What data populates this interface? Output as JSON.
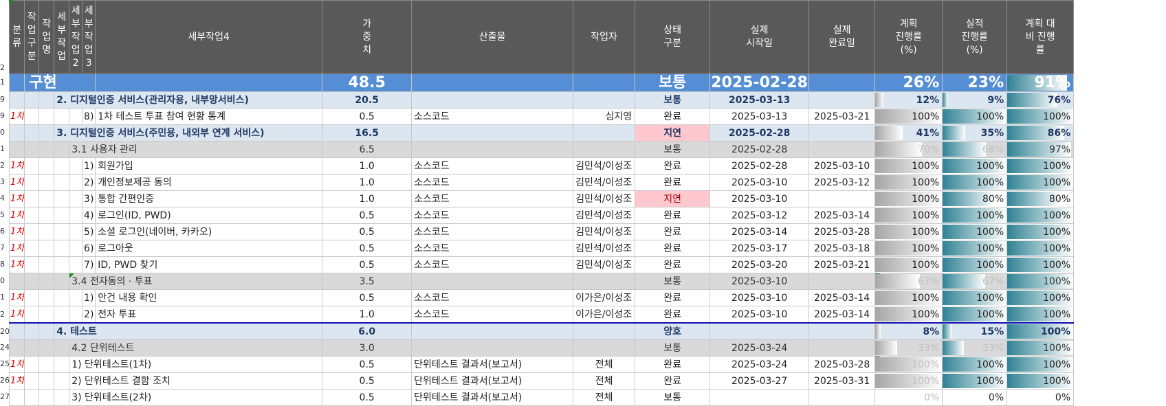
{
  "headers": {
    "cat": "분류",
    "work_type": "작업구분",
    "work_name": "작업명",
    "sub1": "세부작업",
    "sub2": "세부작업2",
    "sub3": "세부작업3",
    "sub4": "세부작업4",
    "weight": "가중치",
    "output": "산출물",
    "worker": "작업자",
    "status": "상태 구분",
    "start": "실제 시작일",
    "end": "실제 완료일",
    "plan": "계획 진행률 (%)",
    "actual": "실적 진행률 (%)",
    "ratio": "계획 대비 진행률"
  },
  "row_numbers": [
    "2",
    "1",
    "9",
    "9",
    "0",
    "1",
    "2",
    "3",
    "4",
    "5",
    "6",
    "7",
    "8",
    "0",
    "1",
    "2",
    "20",
    "24",
    "25",
    "26",
    "27"
  ],
  "total": {
    "label": "구현",
    "weight": "48.5",
    "status": "보통",
    "start": "2025-02-28",
    "plan": "26%",
    "actual": "23%",
    "ratio": "91%"
  },
  "rows": [
    {
      "type": "sec",
      "cat": "",
      "indent": "sec",
      "label": "2. 디지털인증 서비스(관리자용, 내부망서비스)",
      "weight": "20.5",
      "output": "",
      "worker": "",
      "status": "보통",
      "start": "2025-03-13",
      "end": "",
      "plan": "12%",
      "plan_v": 0.12,
      "actual": "9%",
      "actual_v": 0.09,
      "ratio": "76%",
      "ratio_v": 0.76
    },
    {
      "type": "item",
      "cat": "1차",
      "indent": "item",
      "num": "8)",
      "label": "1차 테스트 투표 참여 현황 통계",
      "weight": "0.5",
      "output": "소스코드",
      "worker": "심지영",
      "status": "완료",
      "start": "2025-03-13",
      "end": "2025-03-21",
      "plan": "100%",
      "plan_v": 1,
      "actual": "100%",
      "actual_v": 1,
      "ratio": "100%",
      "ratio_v": 1
    },
    {
      "type": "sec",
      "cat": "",
      "indent": "sec",
      "label": "3. 디지털인증 서비스(주민용, 내외부 연계 서비스)",
      "weight": "16.5",
      "output": "",
      "worker": "",
      "status": "지연",
      "start": "2025-02-28",
      "end": "",
      "plan": "41%",
      "plan_v": 0.41,
      "actual": "35%",
      "actual_v": 0.35,
      "ratio": "86%",
      "ratio_v": 0.86
    },
    {
      "type": "sub",
      "cat": "",
      "indent": "sub",
      "label": "3.1 사용자 관리",
      "weight": "6.5",
      "output": "",
      "worker": "",
      "status": "보통",
      "start": "2025-02-28",
      "end": "",
      "plan": "70%",
      "plan_v": 0.7,
      "actual": "68%",
      "actual_v": 0.68,
      "ratio": "97%",
      "ratio_v": 0.97
    },
    {
      "type": "item",
      "cat": "1차",
      "indent": "item",
      "num": "1)",
      "label": "회원가입",
      "weight": "1.0",
      "output": "소스코드",
      "worker": "김민석/이성조",
      "status": "완료",
      "start": "2025-02-28",
      "end": "2025-03-10",
      "plan": "100%",
      "plan_v": 1,
      "actual": "100%",
      "actual_v": 1,
      "ratio": "100%",
      "ratio_v": 1
    },
    {
      "type": "item",
      "cat": "1차",
      "indent": "item",
      "num": "2)",
      "label": "개인정보제공 동의",
      "weight": "1.0",
      "output": "소스코드",
      "worker": "김민석/이성조",
      "status": "완료",
      "start": "2025-03-10",
      "end": "2025-03-12",
      "plan": "100%",
      "plan_v": 1,
      "actual": "100%",
      "actual_v": 1,
      "ratio": "100%",
      "ratio_v": 1
    },
    {
      "type": "item",
      "cat": "1차",
      "indent": "item",
      "num": "3)",
      "label": "통합 간편인증",
      "weight": "1.0",
      "output": "소스코드",
      "worker": "김민석/이성조",
      "status": "지연",
      "start": "2025-03-10",
      "end": "",
      "plan": "100%",
      "plan_v": 1,
      "actual": "80%",
      "actual_v": 0.8,
      "ratio": "80%",
      "ratio_v": 0.8
    },
    {
      "type": "item",
      "cat": "1차",
      "indent": "item",
      "num": "4)",
      "label": "로그인(ID, PWD)",
      "weight": "0.5",
      "output": "소스코드",
      "worker": "김민석/이성조",
      "status": "완료",
      "start": "2025-03-12",
      "end": "2025-03-14",
      "plan": "100%",
      "plan_v": 1,
      "actual": "100%",
      "actual_v": 1,
      "ratio": "100%",
      "ratio_v": 1
    },
    {
      "type": "item",
      "cat": "1차",
      "indent": "item",
      "num": "5)",
      "label": "소셜 로그인(네이버, 카카오)",
      "weight": "0.5",
      "output": "소스코드",
      "worker": "김민석/이성조",
      "status": "완료",
      "start": "2025-03-14",
      "end": "2025-03-28",
      "plan": "100%",
      "plan_v": 1,
      "actual": "100%",
      "actual_v": 1,
      "ratio": "100%",
      "ratio_v": 1
    },
    {
      "type": "item",
      "cat": "1차",
      "indent": "item",
      "num": "6)",
      "label": "로그아웃",
      "weight": "0.5",
      "output": "소스코드",
      "worker": "김민석/이성조",
      "status": "완료",
      "start": "2025-03-17",
      "end": "2025-03-18",
      "plan": "100%",
      "plan_v": 1,
      "actual": "100%",
      "actual_v": 1,
      "ratio": "100%",
      "ratio_v": 1
    },
    {
      "type": "item",
      "cat": "1차",
      "indent": "item",
      "num": "7)",
      "label": "ID, PWD 찾기",
      "weight": "0.5",
      "output": "소스코드",
      "worker": "김민석/이성조",
      "status": "완료",
      "start": "2025-03-20",
      "end": "2025-03-21",
      "plan": "100%",
      "plan_v": 1,
      "actual": "100%",
      "actual_v": 1,
      "ratio": "100%",
      "ratio_v": 1
    },
    {
      "type": "sub",
      "cat": "",
      "indent": "sub",
      "label": "3.4 전자동의 · 투표",
      "weight": "3.5",
      "output": "",
      "worker": "",
      "status": "보통",
      "start": "2025-03-10",
      "end": "",
      "plan": "67%",
      "plan_v": 0.67,
      "actual": "67%",
      "actual_v": 0.67,
      "ratio": "100%",
      "ratio_v": 1
    },
    {
      "type": "item",
      "cat": "1차",
      "indent": "item",
      "num": "1)",
      "label": "안건 내용 확인",
      "weight": "0.5",
      "output": "소스코드",
      "worker": "이가은/이성조",
      "status": "완료",
      "start": "2025-03-10",
      "end": "2025-03-14",
      "plan": "100%",
      "plan_v": 1,
      "actual": "100%",
      "actual_v": 1,
      "ratio": "100%",
      "ratio_v": 1
    },
    {
      "type": "item",
      "cat": "1차",
      "indent": "item",
      "num": "2)",
      "label": "전자 투표",
      "weight": "1.0",
      "output": "소스코드",
      "worker": "이가은/이성조",
      "status": "완료",
      "start": "2025-03-10",
      "end": "2025-03-14",
      "plan": "100%",
      "plan_v": 1,
      "actual": "100%",
      "actual_v": 1,
      "ratio": "100%",
      "ratio_v": 1
    },
    {
      "type": "sec",
      "cat": "",
      "indent": "sec",
      "label": "4. 테스트",
      "weight": "6.0",
      "output": "",
      "worker": "",
      "status": "양호",
      "start": "",
      "end": "",
      "plan": "8%",
      "plan_v": 0.08,
      "actual": "15%",
      "actual_v": 0.15,
      "ratio": "100%",
      "ratio_v": 1
    },
    {
      "type": "sub",
      "cat": "",
      "indent": "sub",
      "label": "4.2 단위테스트",
      "weight": "3.0",
      "output": "",
      "worker": "",
      "status": "보통",
      "start": "2025-03-24",
      "end": "",
      "plan": "33%",
      "plan_v": 0.33,
      "actual": "33%",
      "actual_v": 0.33,
      "ratio": "100%",
      "ratio_v": 1
    },
    {
      "type": "item",
      "cat": "1차",
      "indent": "item3",
      "num": "",
      "label": "1) 단위테스트(1차)",
      "weight": "0.5",
      "output": "단위테스트 결과서(보고서)",
      "worker": "전체",
      "status": "완료",
      "start": "2025-03-24",
      "end": "2025-03-28",
      "plan": "100%",
      "plan_v": 1,
      "actual": "100%",
      "actual_v": 1,
      "ratio": "100%",
      "ratio_v": 1
    },
    {
      "type": "item",
      "cat": "1차",
      "indent": "item3",
      "num": "",
      "label": "2) 단위테스트 결함 조치",
      "weight": "0.5",
      "output": "단위테스트 결과서(보고서)",
      "worker": "전체",
      "status": "완료",
      "start": "2025-03-27",
      "end": "2025-03-31",
      "plan": "100%",
      "plan_v": 1,
      "actual": "100%",
      "actual_v": 1,
      "ratio": "100%",
      "ratio_v": 1
    },
    {
      "type": "item",
      "cat": "",
      "indent": "item3",
      "num": "",
      "label": "3) 단위테스트(2차)",
      "weight": "0.5",
      "output": "단위테스트 결과서(보고서)",
      "worker": "전체",
      "status": "보통",
      "start": "",
      "end": "",
      "plan": "0%",
      "plan_v": 0,
      "actual": "0%",
      "actual_v": 0,
      "ratio": "0%",
      "ratio_v": 0
    }
  ]
}
